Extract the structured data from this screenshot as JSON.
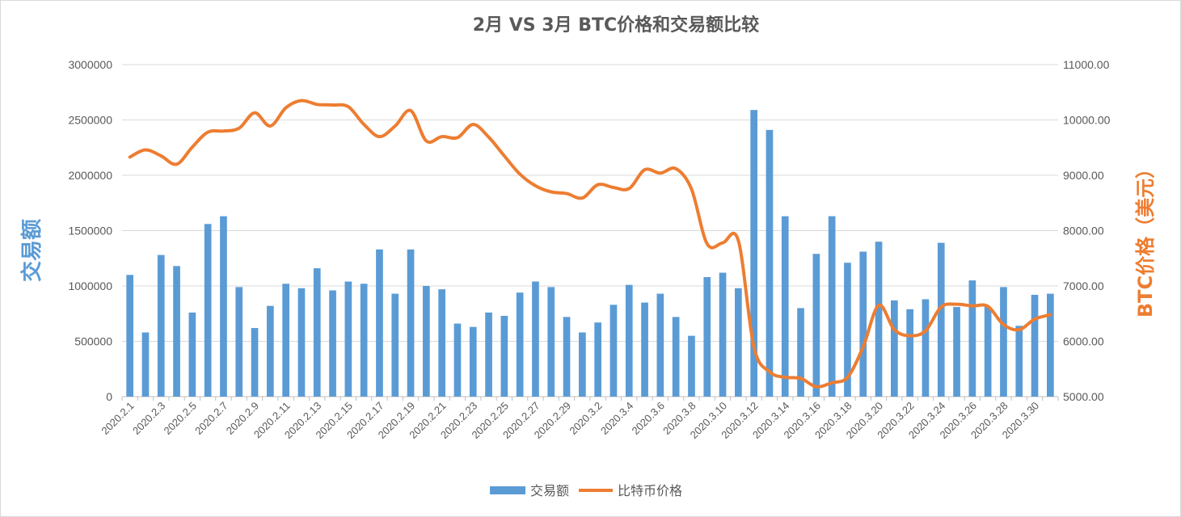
{
  "chart_data": {
    "type": "bar+line",
    "title": "2月 VS 3月 BTC价格和交易额比较",
    "y_left_label": "交易额",
    "y_right_label": "BTC价格（美元）",
    "y_left_lim": [
      0,
      3000000
    ],
    "y_left_ticks": [
      "0",
      "500000",
      "1000000",
      "1500000",
      "2000000",
      "2500000",
      "3000000"
    ],
    "y_right_lim": [
      5000,
      11000
    ],
    "y_right_ticks": [
      "5000.00",
      "6000.00",
      "7000.00",
      "8000.00",
      "9000.00",
      "10000.00",
      "11000.00"
    ],
    "categories": [
      "2020.2.1",
      "2020.2.2",
      "2020.2.3",
      "2020.2.4",
      "2020.2.5",
      "2020.2.6",
      "2020.2.7",
      "2020.2.8",
      "2020.2.9",
      "2020.2.10",
      "2020.2.11",
      "2020.2.12",
      "2020.2.13",
      "2020.2.14",
      "2020.2.15",
      "2020.2.16",
      "2020.2.17",
      "2020.2.18",
      "2020.2.19",
      "2020.2.20",
      "2020.2.21",
      "2020.2.22",
      "2020.2.23",
      "2020.2.24",
      "2020.2.25",
      "2020.2.26",
      "2020.2.27",
      "2020.2.28",
      "2020.2.29",
      "2020.3.1",
      "2020.3.2",
      "2020.3.3",
      "2020.3.4",
      "2020.3.5",
      "2020.3.6",
      "2020.3.7",
      "2020.3.8",
      "2020.3.9",
      "2020.3.10",
      "2020.3.11",
      "2020.3.12",
      "2020.3.13",
      "2020.3.14",
      "2020.3.15",
      "2020.3.16",
      "2020.3.17",
      "2020.3.18",
      "2020.3.19",
      "2020.3.20",
      "2020.3.21",
      "2020.3.22",
      "2020.3.23",
      "2020.3.24",
      "2020.3.25",
      "2020.3.26",
      "2020.3.27",
      "2020.3.28",
      "2020.3.29",
      "2020.3.30",
      "2020.3.31"
    ],
    "x_tick_labels": [
      "2020.2.1",
      "2020.2.3",
      "2020.2.5",
      "2020.2.7",
      "2020.2.9",
      "2020.2.11",
      "2020.2.13",
      "2020.2.15",
      "2020.2.17",
      "2020.2.19",
      "2020.2.21",
      "2020.2.23",
      "2020.2.25",
      "2020.2.27",
      "2020.2.29",
      "2020.3.2",
      "2020.3.4",
      "2020.3.6",
      "2020.3.8",
      "2020.3.10",
      "2020.3.12",
      "2020.3.14",
      "2020.3.16",
      "2020.3.18",
      "2020.3.20",
      "2020.3.22",
      "2020.3.24",
      "2020.3.26",
      "2020.3.28",
      "2020.3.30"
    ],
    "series": [
      {
        "name": "交易额",
        "type": "bar",
        "axis": "left",
        "color": "#5b9bd5",
        "values": [
          1100000,
          580000,
          1280000,
          1180000,
          760000,
          1560000,
          1630000,
          990000,
          620000,
          820000,
          1020000,
          980000,
          1160000,
          960000,
          1040000,
          1020000,
          1330000,
          930000,
          1330000,
          1000000,
          970000,
          660000,
          630000,
          760000,
          730000,
          940000,
          1040000,
          990000,
          720000,
          580000,
          670000,
          830000,
          1010000,
          850000,
          930000,
          720000,
          550000,
          1080000,
          1120000,
          980000,
          2590000,
          2410000,
          1630000,
          800000,
          1290000,
          1630000,
          1210000,
          1310000,
          1400000,
          870000,
          790000,
          880000,
          1390000,
          810000,
          1050000,
          810000,
          990000,
          640000,
          920000,
          930000
        ]
      },
      {
        "name": "比特币价格",
        "type": "line",
        "axis": "right",
        "color": "#ed7d31",
        "values": [
          9330,
          9460,
          9350,
          9200,
          9510,
          9780,
          9800,
          9850,
          10130,
          9890,
          10220,
          10350,
          10280,
          10270,
          10240,
          9920,
          9700,
          9890,
          10170,
          9620,
          9700,
          9680,
          9920,
          9690,
          9350,
          9020,
          8810,
          8700,
          8670,
          8590,
          8830,
          8780,
          8760,
          9100,
          9040,
          9120,
          8750,
          7760,
          7780,
          7820,
          5900,
          5450,
          5350,
          5330,
          5180,
          5250,
          5350,
          5900,
          6650,
          6210,
          6100,
          6190,
          6620,
          6670,
          6640,
          6630,
          6300,
          6210,
          6400,
          6480
        ]
      }
    ],
    "legend": [
      "交易额",
      "比特币价格"
    ],
    "legend_position": "bottom",
    "grid": true
  }
}
